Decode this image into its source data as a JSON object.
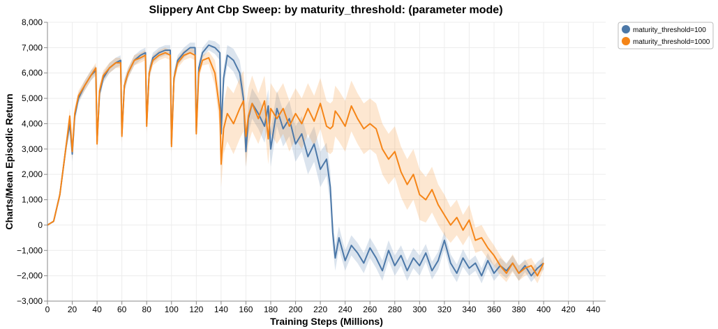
{
  "chart_data": {
    "type": "line",
    "title": "Slippery Ant Cbp Sweep: by maturity_threshold: (parameter mode)",
    "xlabel": "Training Steps (Millions)",
    "ylabel": "Charts/Mean Episodic Return",
    "xlim": [
      0,
      450
    ],
    "ylim": [
      -3000,
      8000
    ],
    "xticks": [
      0,
      20,
      40,
      60,
      80,
      100,
      120,
      140,
      160,
      180,
      200,
      220,
      240,
      260,
      280,
      300,
      320,
      340,
      360,
      380,
      400,
      420,
      440
    ],
    "xtick_labels": [
      "0",
      "20",
      "40",
      "60",
      "80",
      "100",
      "120",
      "140",
      "160",
      "180",
      "200",
      "220",
      "240",
      "260",
      "280",
      "300",
      "320",
      "340",
      "360",
      "380",
      "400",
      "420",
      "440"
    ],
    "yticks": [
      -3000,
      -2000,
      -1000,
      0,
      1000,
      2000,
      3000,
      4000,
      5000,
      6000,
      7000,
      8000
    ],
    "ytick_labels": [
      "−3,000",
      "−2,000",
      "−1,000",
      "0",
      "1,000",
      "2,000",
      "3,000",
      "4,000",
      "5,000",
      "6,000",
      "7,000",
      "8,000"
    ],
    "grid": true,
    "legend_position": "top-right",
    "series": [
      {
        "name": "maturity_threshold=100",
        "color": "#4c78a8",
        "x": [
          0,
          5,
          10,
          15,
          18,
          20,
          22,
          25,
          30,
          35,
          39,
          40,
          42,
          45,
          50,
          55,
          59,
          60,
          62,
          65,
          70,
          75,
          79,
          80,
          82,
          85,
          90,
          95,
          99,
          100,
          102,
          105,
          110,
          115,
          119,
          120,
          122,
          125,
          130,
          135,
          139,
          140,
          142,
          145,
          150,
          155,
          158,
          160,
          162,
          165,
          170,
          175,
          178,
          180,
          185,
          190,
          195,
          200,
          205,
          210,
          215,
          220,
          225,
          228,
          230,
          232,
          235,
          240,
          245,
          250,
          255,
          260,
          265,
          270,
          275,
          280,
          285,
          290,
          295,
          300,
          305,
          310,
          315,
          320,
          325,
          330,
          335,
          340,
          345,
          350,
          355,
          360,
          365,
          370,
          375,
          380,
          385,
          390,
          395,
          400
        ],
        "y": [
          0,
          150,
          1200,
          3100,
          4000,
          2800,
          4300,
          5000,
          5500,
          5900,
          6100,
          3300,
          5200,
          5800,
          6200,
          6400,
          6500,
          3600,
          5500,
          6000,
          6500,
          6700,
          6800,
          4000,
          6000,
          6600,
          6800,
          6900,
          6900,
          3200,
          5800,
          6500,
          6800,
          7000,
          7000,
          3700,
          6200,
          6800,
          7100,
          7000,
          6800,
          3600,
          5800,
          6700,
          6500,
          6000,
          5000,
          2900,
          4200,
          4800,
          4400,
          3900,
          4700,
          3000,
          4600,
          3800,
          4200,
          3200,
          3600,
          2700,
          3200,
          2200,
          2600,
          1500,
          -300,
          -1300,
          -500,
          -1400,
          -800,
          -1100,
          -1500,
          -900,
          -1300,
          -1800,
          -1000,
          -1600,
          -1200,
          -1800,
          -1300,
          -1600,
          -1100,
          -1800,
          -1400,
          -600,
          -1500,
          -1900,
          -1300,
          -1700,
          -1500,
          -2000,
          -1400,
          -1900,
          -1600,
          -1800,
          -1500,
          -1900,
          -1600,
          -2000,
          -1700,
          -1500
        ],
        "band_half_width": [
          0,
          50,
          150,
          250,
          300,
          300,
          250,
          200,
          200,
          200,
          200,
          300,
          250,
          200,
          200,
          200,
          200,
          300,
          250,
          200,
          200,
          200,
          200,
          300,
          250,
          200,
          200,
          200,
          200,
          300,
          250,
          200,
          200,
          200,
          200,
          300,
          250,
          200,
          200,
          250,
          300,
          400,
          400,
          400,
          450,
          500,
          550,
          600,
          600,
          600,
          600,
          650,
          650,
          700,
          700,
          700,
          700,
          700,
          700,
          700,
          700,
          700,
          650,
          650,
          600,
          500,
          450,
          400,
          400,
          400,
          400,
          400,
          400,
          400,
          400,
          400,
          400,
          400,
          400,
          400,
          350,
          350,
          350,
          350,
          350,
          350,
          350,
          300,
          300,
          300,
          300,
          300,
          300,
          300,
          300,
          300,
          250,
          250,
          250,
          250
        ]
      },
      {
        "name": "maturity_threshold=1000",
        "color": "#f58518",
        "x": [
          0,
          5,
          10,
          15,
          18,
          20,
          22,
          25,
          30,
          35,
          39,
          40,
          42,
          45,
          50,
          55,
          59,
          60,
          62,
          65,
          70,
          75,
          79,
          80,
          82,
          85,
          90,
          95,
          99,
          100,
          102,
          105,
          110,
          115,
          119,
          120,
          122,
          125,
          130,
          135,
          139,
          140,
          142,
          145,
          150,
          155,
          158,
          160,
          162,
          165,
          170,
          175,
          178,
          180,
          185,
          190,
          195,
          200,
          205,
          210,
          215,
          220,
          225,
          228,
          230,
          232,
          235,
          240,
          245,
          250,
          255,
          260,
          265,
          270,
          275,
          280,
          285,
          290,
          295,
          300,
          305,
          310,
          315,
          320,
          325,
          330,
          335,
          340,
          345,
          350,
          355,
          360,
          365,
          370,
          375,
          380,
          385,
          390,
          395,
          400
        ],
        "y": [
          0,
          150,
          1200,
          3100,
          4300,
          2900,
          4400,
          5100,
          5500,
          5900,
          6200,
          3200,
          5300,
          5900,
          6200,
          6400,
          6400,
          3500,
          5500,
          6000,
          6500,
          6600,
          6700,
          3900,
          6000,
          6500,
          6700,
          6800,
          6700,
          3100,
          5800,
          6400,
          6700,
          6800,
          6700,
          3600,
          6000,
          6500,
          6600,
          6000,
          4500,
          2400,
          3800,
          4400,
          4000,
          4600,
          4900,
          3500,
          4300,
          4800,
          4200,
          4900,
          3400,
          4600,
          4200,
          4600,
          3900,
          4400,
          4000,
          4600,
          4100,
          4800,
          3900,
          3800,
          3900,
          4500,
          4300,
          3900,
          4700,
          4200,
          3800,
          4000,
          3800,
          3000,
          2600,
          2900,
          2100,
          1600,
          2000,
          1200,
          1000,
          1400,
          800,
          400,
          0,
          300,
          -200,
          200,
          -600,
          -500,
          -900,
          -1200,
          -1600,
          -1900,
          -1500,
          -1900,
          -1700,
          -1600,
          -2000,
          -1500
        ],
        "band_half_width": [
          0,
          50,
          150,
          250,
          300,
          300,
          250,
          200,
          200,
          200,
          200,
          300,
          250,
          200,
          200,
          200,
          200,
          300,
          250,
          200,
          200,
          200,
          200,
          300,
          250,
          200,
          200,
          200,
          200,
          300,
          250,
          200,
          200,
          200,
          200,
          300,
          250,
          200,
          250,
          500,
          700,
          900,
          1000,
          1100,
          1200,
          1200,
          1200,
          1200,
          1100,
          1100,
          1000,
          1000,
          1000,
          1000,
          1000,
          1000,
          1000,
          1000,
          1000,
          1000,
          1000,
          1000,
          1000,
          1000,
          1000,
          1000,
          1000,
          1000,
          1000,
          1000,
          1000,
          1000,
          1000,
          1000,
          1000,
          1000,
          1000,
          1000,
          1000,
          1000,
          900,
          900,
          800,
          800,
          700,
          700,
          600,
          600,
          500,
          500,
          450,
          400,
          400,
          350,
          350,
          300,
          300,
          300,
          300,
          250
        ]
      }
    ]
  }
}
